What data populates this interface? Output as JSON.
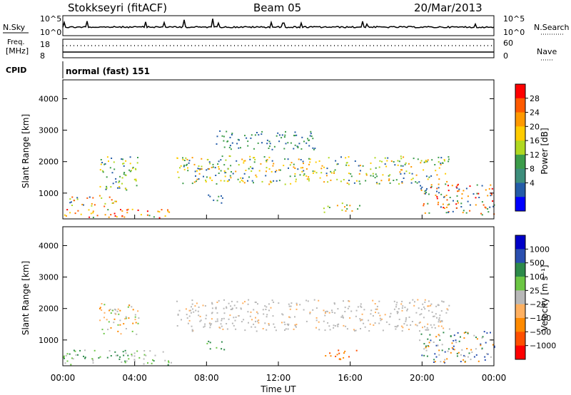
{
  "header": {
    "station": "Stokkseyri (fitACF)",
    "beam": "Beam 05",
    "date": "20/Mar/2013"
  },
  "top_panels": {
    "nsky_label": "N.Sky",
    "nsky_ticks": [
      "10^5",
      "10^0"
    ],
    "nsearch_label": "N.Search",
    "nsearch_ticks": [
      "10^5",
      "10^0"
    ],
    "freq_label_1": "Freq.",
    "freq_label_2": "[MHz]",
    "freq_ticks": [
      "18",
      "8"
    ],
    "nave_label": "Nave",
    "nave_ticks": [
      "60",
      "0"
    ],
    "cpid_label": "CPID",
    "cpid_value": "normal (fast) 151"
  },
  "chart_data": [
    {
      "type": "heatmap",
      "name": "power",
      "ylabel": "Slant Range [km]",
      "ylim": [
        180,
        4600
      ],
      "yticks": [
        1000,
        2000,
        3000,
        4000
      ],
      "xlim": [
        0,
        24
      ],
      "colorbar_label": "Power [dB]",
      "colorbar_ticks": [
        "28",
        "24",
        "20",
        "16",
        "12",
        "8",
        "4"
      ],
      "colorbar_colors": [
        "#ff0000",
        "#ff5a00",
        "#ff9900",
        "#ffcc00",
        "#b0d820",
        "#3c9c4a",
        "#3d8e7c",
        "#245ca8",
        "#0000ff"
      ]
    },
    {
      "type": "heatmap",
      "name": "velocity",
      "ylabel": "Slant Range [km]",
      "ylim": [
        180,
        4600
      ],
      "yticks": [
        1000,
        2000,
        3000,
        4000
      ],
      "xlim": [
        0,
        24
      ],
      "xlabel": "Time UT",
      "xticks": [
        "00:00",
        "04:00",
        "08:00",
        "12:00",
        "16:00",
        "20:00",
        "00:00"
      ],
      "colorbar_label": "Velocity [m s⁻¹]",
      "colorbar_ticks": [
        "1000",
        "500",
        "100",
        "25",
        "−25",
        "−100",
        "−500",
        "−1000"
      ],
      "colorbar_colors": [
        "#0000c8",
        "#2a4fb0",
        "#2d8a4a",
        "#6cc644",
        "#b8b8b8",
        "#ffb060",
        "#ff8a00",
        "#ff5000",
        "#ff0000"
      ]
    }
  ]
}
